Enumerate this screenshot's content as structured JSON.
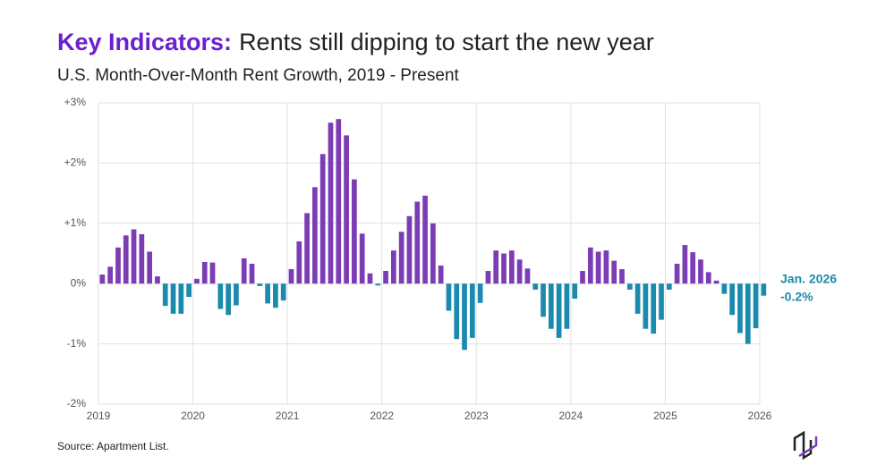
{
  "chart_data": {
    "type": "bar",
    "title_prefix": "Key Indicators:",
    "title": "Rents still dipping to start the new year",
    "subtitle": "U.S. Month-Over-Month Rent Growth, 2019 - Present",
    "source": "Source: Apartment List.",
    "annotation": [
      "Jan. 2026",
      "-0.2%"
    ],
    "categories": [
      "2019",
      null,
      null,
      null,
      null,
      null,
      null,
      null,
      null,
      null,
      null,
      null,
      "2020",
      null,
      null,
      null,
      null,
      null,
      null,
      null,
      null,
      null,
      null,
      null,
      "2021",
      null,
      null,
      null,
      null,
      null,
      null,
      null,
      null,
      null,
      null,
      null,
      "2022",
      null,
      null,
      null,
      null,
      null,
      null,
      null,
      null,
      null,
      null,
      null,
      "2023",
      null,
      null,
      null,
      null,
      null,
      null,
      null,
      null,
      null,
      null,
      null,
      "2024",
      null,
      null,
      null,
      null,
      null,
      null,
      null,
      null,
      null,
      null,
      null,
      "2025",
      null,
      null,
      null,
      null,
      null,
      null,
      null,
      null,
      null,
      null,
      null,
      "2026"
    ],
    "values": [
      0.15,
      0.28,
      0.6,
      0.8,
      0.9,
      0.82,
      0.53,
      0.12,
      -0.37,
      -0.5,
      -0.5,
      -0.22,
      0.08,
      0.36,
      0.35,
      -0.42,
      -0.52,
      -0.36,
      0.42,
      0.33,
      -0.04,
      -0.33,
      -0.4,
      -0.28,
      0.24,
      0.7,
      1.17,
      1.6,
      2.15,
      2.67,
      2.73,
      2.46,
      1.73,
      0.83,
      0.17,
      -0.03,
      0.21,
      0.55,
      0.86,
      1.12,
      1.36,
      1.46,
      1.0,
      0.3,
      -0.45,
      -0.92,
      -1.1,
      -0.9,
      -0.32,
      0.21,
      0.55,
      0.5,
      0.55,
      0.4,
      0.25,
      -0.1,
      -0.55,
      -0.75,
      -0.9,
      -0.75,
      -0.25,
      0.21,
      0.6,
      0.53,
      0.55,
      0.38,
      0.24,
      -0.1,
      -0.5,
      -0.75,
      -0.83,
      -0.6,
      -0.1,
      0.33,
      0.64,
      0.52,
      0.4,
      0.19,
      0.05,
      -0.17,
      -0.52,
      -0.82,
      -1.0,
      -0.74,
      -0.2
    ],
    "positive_color": "#7b3cb4",
    "negative_color": "#1b8bad",
    "ylim": [
      -2,
      3
    ],
    "yticks": [
      {
        "value": -2,
        "label": "-2%"
      },
      {
        "value": -1,
        "label": "-1%"
      },
      {
        "value": 0,
        "label": "0%"
      },
      {
        "value": 1,
        "label": "+1%"
      },
      {
        "value": 2,
        "label": "+2%"
      },
      {
        "value": 3,
        "label": "+3%"
      }
    ],
    "grid": true
  }
}
